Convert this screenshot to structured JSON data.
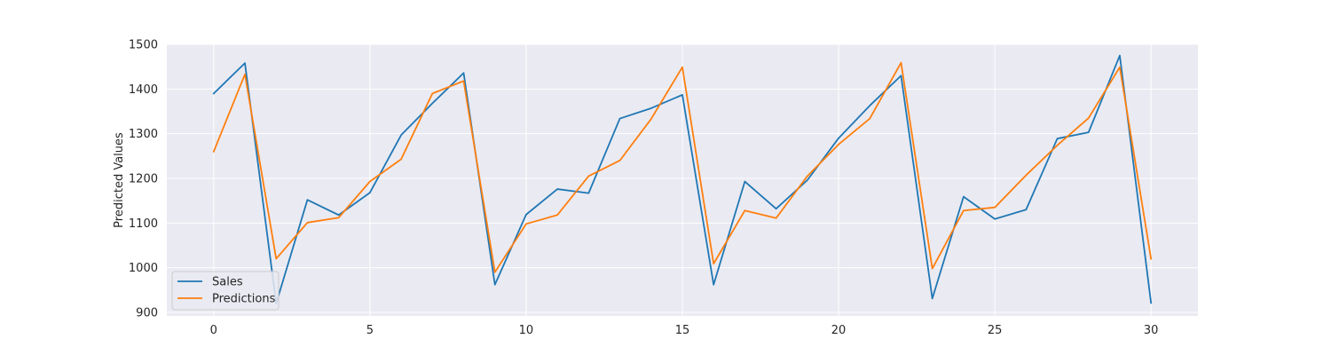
{
  "chart_data": {
    "type": "line",
    "title": "",
    "xlabel": "",
    "ylabel": "Predicted Values",
    "x": [
      0,
      1,
      2,
      3,
      4,
      5,
      6,
      7,
      8,
      9,
      10,
      11,
      12,
      13,
      14,
      15,
      16,
      17,
      18,
      19,
      20,
      21,
      22,
      23,
      24,
      25,
      26,
      27,
      28,
      29,
      30
    ],
    "xlim": [
      -1.5,
      31.5
    ],
    "ylim": [
      892,
      1500
    ],
    "xticks": [
      0,
      5,
      10,
      15,
      20,
      25,
      30
    ],
    "yticks": [
      900,
      1000,
      1100,
      1200,
      1300,
      1400,
      1500
    ],
    "grid": true,
    "legend_position": "lower-left",
    "series": [
      {
        "name": "Sales",
        "color": "#1f77b4",
        "values": [
          1390,
          1458,
          920,
          1152,
          1118,
          1168,
          1297,
          1368,
          1436,
          962,
          1119,
          1176,
          1167,
          1334,
          1357,
          1387,
          962,
          1193,
          1132,
          1196,
          1290,
          1363,
          1430,
          931,
          1159,
          1109,
          1130,
          1289,
          1303,
          1475,
          921
        ]
      },
      {
        "name": "Predictions",
        "color": "#ff7f0e",
        "values": [
          1260,
          1433,
          1020,
          1101,
          1112,
          1193,
          1243,
          1390,
          1418,
          990,
          1098,
          1118,
          1205,
          1240,
          1333,
          1449,
          1009,
          1128,
          1111,
          1205,
          1276,
          1334,
          1459,
          998,
          1128,
          1135,
          1207,
          1274,
          1335,
          1449,
          1020
        ]
      }
    ]
  },
  "style": {
    "plot_background": "#eaeaf2",
    "grid_color": "#ffffff",
    "text_color": "#262626"
  }
}
